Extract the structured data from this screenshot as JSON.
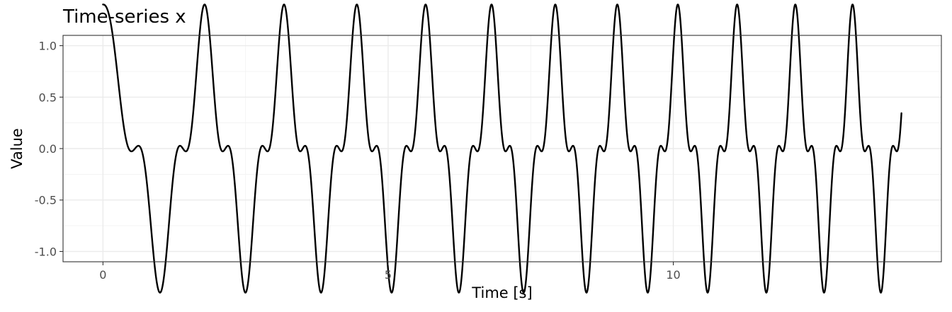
{
  "chart_data": {
    "type": "line",
    "title": "Time-series x",
    "xlabel": "Time [s]",
    "ylabel": "Value",
    "xlim": [
      -0.7,
      14.7
    ],
    "ylim": [
      -1.1,
      1.1
    ],
    "x_ticks": [
      0,
      5,
      10
    ],
    "x_tick_labels": [
      "0",
      "5",
      "10"
    ],
    "y_ticks": [
      -1.0,
      -0.5,
      0.0,
      0.5,
      1.0
    ],
    "y_tick_labels": [
      "-1.0",
      "-0.5",
      "0.0",
      "0.5",
      "1.0"
    ],
    "grid": true,
    "legend": "none",
    "series": [
      {
        "line_color": "#000000",
        "x_start": 0,
        "x_end": 14,
        "function": "cos(pi * t^1.2) + 0.4 * cos(3 * pi * t^1.2)"
      }
    ]
  }
}
